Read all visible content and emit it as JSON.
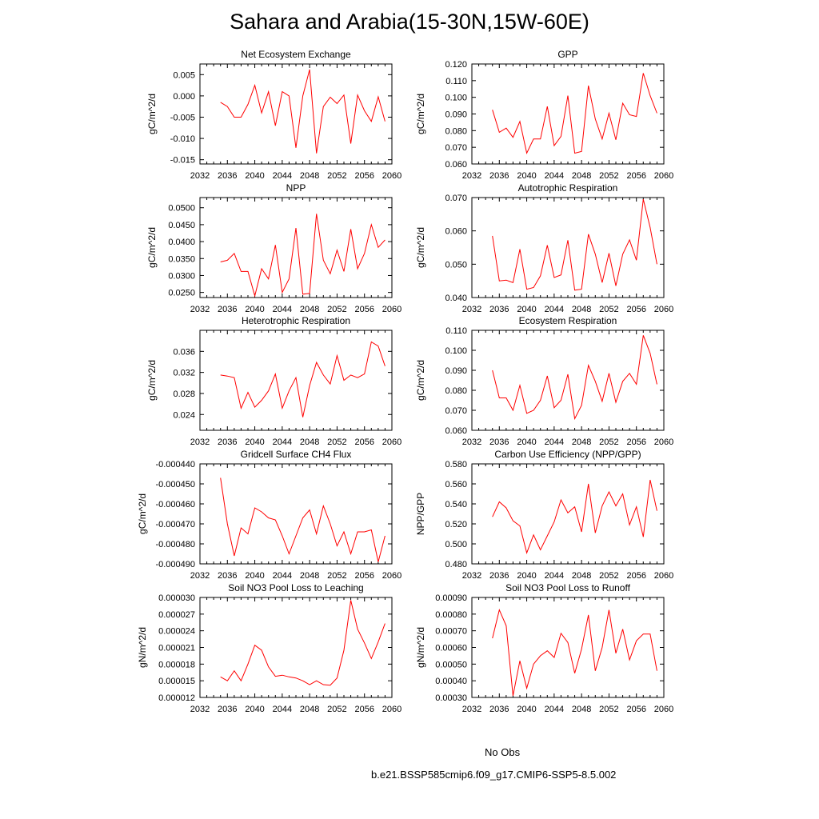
{
  "title": "Sahara and Arabia(15-30N,15W-60E)",
  "colors": {
    "model_line": "#ff0000",
    "obs_line": "#4a4aff",
    "axis": "#000000"
  },
  "legend": {
    "obs_label": "No Obs",
    "model_label": "b.e21.BSSP585cmip6.f09_g17.CMIP6-SSP5-8.5.002"
  },
  "chart_data": [
    {
      "type": "line",
      "title": "Net Ecosystem Exchange",
      "xlabel": "",
      "ylabel": "gC/m^2/d",
      "xlim": [
        2032,
        2060
      ],
      "ylim": [
        -0.016,
        0.0075
      ],
      "xticks": [
        2032,
        2036,
        2040,
        2044,
        2048,
        2052,
        2056,
        2060
      ],
      "yticks": [
        -0.015,
        -0.01,
        -0.005,
        0.0,
        0.005
      ],
      "ytick_labels": [
        "-0.015",
        "-0.010",
        "-0.005",
        "0.000",
        "0.005"
      ],
      "x": [
        2035,
        2036,
        2037,
        2038,
        2039,
        2040,
        2041,
        2042,
        2043,
        2044,
        2045,
        2046,
        2047,
        2048,
        2049,
        2050,
        2051,
        2052,
        2053,
        2054,
        2055,
        2056,
        2057,
        2058,
        2059
      ],
      "values": [
        -0.0015,
        -0.0025,
        -0.005,
        -0.005,
        -0.002,
        0.0025,
        -0.004,
        0.001,
        -0.007,
        0.001,
        0.0,
        -0.0122,
        0.0,
        0.0062,
        -0.0135,
        -0.0025,
        -0.0003,
        -0.0018,
        0.0002,
        -0.0112,
        0.0002,
        -0.0035,
        -0.006,
        -0.0002,
        -0.006
      ]
    },
    {
      "type": "line",
      "title": "GPP",
      "xlabel": "",
      "ylabel": "gC/m^2/d",
      "xlim": [
        2032,
        2060
      ],
      "ylim": [
        0.06,
        0.12
      ],
      "xticks": [
        2032,
        2036,
        2040,
        2044,
        2048,
        2052,
        2056,
        2060
      ],
      "yticks": [
        0.06,
        0.07,
        0.08,
        0.09,
        0.1,
        0.11,
        0.12
      ],
      "ytick_labels": [
        "0.060",
        "0.070",
        "0.080",
        "0.090",
        "0.100",
        "0.110",
        "0.120"
      ],
      "x": [
        2035,
        2036,
        2037,
        2038,
        2039,
        2040,
        2041,
        2042,
        2043,
        2044,
        2045,
        2046,
        2047,
        2048,
        2049,
        2050,
        2051,
        2052,
        2053,
        2054,
        2055,
        2056,
        2057,
        2058,
        2059
      ],
      "values": [
        0.0925,
        0.079,
        0.0815,
        0.076,
        0.0855,
        0.0665,
        0.075,
        0.075,
        0.0945,
        0.071,
        0.0765,
        0.101,
        0.0665,
        0.0675,
        0.107,
        0.087,
        0.075,
        0.0905,
        0.0745,
        0.0965,
        0.0895,
        0.0885,
        0.1145,
        0.101,
        0.0905
      ]
    },
    {
      "type": "line",
      "title": "NPP",
      "xlabel": "",
      "ylabel": "gC/m^2/d",
      "xlim": [
        2032,
        2060
      ],
      "ylim": [
        0.0235,
        0.053
      ],
      "xticks": [
        2032,
        2036,
        2040,
        2044,
        2048,
        2052,
        2056,
        2060
      ],
      "yticks": [
        0.025,
        0.03,
        0.035,
        0.04,
        0.045,
        0.05
      ],
      "ytick_labels": [
        "0.0250",
        "0.0300",
        "0.0350",
        "0.0400",
        "0.0450",
        "0.0500"
      ],
      "x": [
        2035,
        2036,
        2037,
        2038,
        2039,
        2040,
        2041,
        2042,
        2043,
        2044,
        2045,
        2046,
        2047,
        2048,
        2049,
        2050,
        2051,
        2052,
        2053,
        2054,
        2055,
        2056,
        2057,
        2058,
        2059
      ],
      "values": [
        0.034,
        0.0345,
        0.0365,
        0.0312,
        0.0312,
        0.024,
        0.032,
        0.029,
        0.039,
        0.025,
        0.029,
        0.044,
        0.0245,
        0.0247,
        0.0482,
        0.0345,
        0.0305,
        0.0375,
        0.0312,
        0.0437,
        0.032,
        0.0365,
        0.045,
        0.0383,
        0.0405
      ]
    },
    {
      "type": "line",
      "title": "Autotrophic Respiration",
      "xlabel": "",
      "ylabel": "gC/m^2/d",
      "xlim": [
        2032,
        2060
      ],
      "ylim": [
        0.04,
        0.07
      ],
      "xticks": [
        2032,
        2036,
        2040,
        2044,
        2048,
        2052,
        2056,
        2060
      ],
      "yticks": [
        0.04,
        0.05,
        0.06,
        0.07
      ],
      "ytick_labels": [
        "0.040",
        "0.050",
        "0.060",
        "0.070"
      ],
      "x": [
        2035,
        2036,
        2037,
        2038,
        2039,
        2040,
        2041,
        2042,
        2043,
        2044,
        2045,
        2046,
        2047,
        2048,
        2049,
        2050,
        2051,
        2052,
        2053,
        2054,
        2055,
        2056,
        2057,
        2058,
        2059
      ],
      "values": [
        0.0585,
        0.045,
        0.0452,
        0.0445,
        0.0545,
        0.0425,
        0.043,
        0.0465,
        0.0557,
        0.046,
        0.0468,
        0.0572,
        0.0422,
        0.0425,
        0.059,
        0.053,
        0.0445,
        0.0533,
        0.0435,
        0.053,
        0.0573,
        0.0512,
        0.0695,
        0.061,
        0.05
      ]
    },
    {
      "type": "line",
      "title": "Heterotrophic Respiration",
      "xlabel": "",
      "ylabel": "gC/m^2/d",
      "xlim": [
        2032,
        2060
      ],
      "ylim": [
        0.021,
        0.04
      ],
      "xticks": [
        2032,
        2036,
        2040,
        2044,
        2048,
        2052,
        2056,
        2060
      ],
      "yticks": [
        0.024,
        0.028,
        0.032,
        0.036
      ],
      "ytick_labels": [
        "0.024",
        "0.028",
        "0.032",
        "0.036"
      ],
      "x": [
        2035,
        2036,
        2037,
        2038,
        2039,
        2040,
        2041,
        2042,
        2043,
        2044,
        2045,
        2046,
        2047,
        2048,
        2049,
        2050,
        2051,
        2052,
        2053,
        2054,
        2055,
        2056,
        2057,
        2058,
        2059
      ],
      "values": [
        0.0315,
        0.0313,
        0.031,
        0.0252,
        0.0282,
        0.0254,
        0.0267,
        0.0285,
        0.0317,
        0.0252,
        0.0285,
        0.031,
        0.0235,
        0.0295,
        0.0339,
        0.0315,
        0.0298,
        0.0352,
        0.0305,
        0.0315,
        0.031,
        0.0317,
        0.0378,
        0.037,
        0.0332
      ]
    },
    {
      "type": "line",
      "title": "Ecosystem Respiration",
      "xlabel": "",
      "ylabel": "gC/m^2/d",
      "xlim": [
        2032,
        2060
      ],
      "ylim": [
        0.06,
        0.11
      ],
      "xticks": [
        2032,
        2036,
        2040,
        2044,
        2048,
        2052,
        2056,
        2060
      ],
      "yticks": [
        0.06,
        0.07,
        0.08,
        0.09,
        0.1,
        0.11
      ],
      "ytick_labels": [
        "0.060",
        "0.070",
        "0.080",
        "0.090",
        "0.100",
        "0.110"
      ],
      "x": [
        2035,
        2036,
        2037,
        2038,
        2039,
        2040,
        2041,
        2042,
        2043,
        2044,
        2045,
        2046,
        2047,
        2048,
        2049,
        2050,
        2051,
        2052,
        2053,
        2054,
        2055,
        2056,
        2057,
        2058,
        2059
      ],
      "values": [
        0.09,
        0.0762,
        0.0762,
        0.07,
        0.0825,
        0.0685,
        0.07,
        0.075,
        0.0872,
        0.0713,
        0.075,
        0.088,
        0.0658,
        0.0725,
        0.0925,
        0.0845,
        0.0745,
        0.0885,
        0.074,
        0.0845,
        0.0885,
        0.083,
        0.1075,
        0.0985,
        0.083
      ]
    },
    {
      "type": "line",
      "title": "Gridcell Surface CH4 Flux",
      "xlabel": "",
      "ylabel": "gC/m^2/d",
      "xlim": [
        2032,
        2060
      ],
      "ylim": [
        -0.00049,
        -0.00044
      ],
      "xticks": [
        2032,
        2036,
        2040,
        2044,
        2048,
        2052,
        2056,
        2060
      ],
      "yticks": [
        -0.00049,
        -0.00048,
        -0.00047,
        -0.00046,
        -0.00045,
        -0.00044
      ],
      "ytick_labels": [
        "-0.000490",
        "-0.000480",
        "-0.000470",
        "-0.000460",
        "-0.000450",
        "-0.000440"
      ],
      "x": [
        2035,
        2036,
        2037,
        2038,
        2039,
        2040,
        2041,
        2042,
        2043,
        2044,
        2045,
        2046,
        2047,
        2048,
        2049,
        2050,
        2051,
        2052,
        2053,
        2054,
        2055,
        2056,
        2057,
        2058,
        2059
      ],
      "values": [
        -0.000447,
        -0.00047,
        -0.000486,
        -0.000472,
        -0.000475,
        -0.000462,
        -0.000464,
        -0.000467,
        -0.000468,
        -0.000476,
        -0.000485,
        -0.000476,
        -0.000467,
        -0.000463,
        -0.000475,
        -0.000461,
        -0.00047,
        -0.000481,
        -0.000474,
        -0.000485,
        -0.000474,
        -0.000474,
        -0.000473,
        -0.000489,
        -0.000476
      ]
    },
    {
      "type": "line",
      "title": "Carbon Use Efficiency (NPP/GPP)",
      "xlabel": "",
      "ylabel": "NPP/GPP",
      "xlim": [
        2032,
        2060
      ],
      "ylim": [
        0.48,
        0.58
      ],
      "xticks": [
        2032,
        2036,
        2040,
        2044,
        2048,
        2052,
        2056,
        2060
      ],
      "yticks": [
        0.48,
        0.5,
        0.52,
        0.54,
        0.56,
        0.58
      ],
      "ytick_labels": [
        "0.480",
        "0.500",
        "0.520",
        "0.540",
        "0.560",
        "0.580"
      ],
      "x": [
        2035,
        2036,
        2037,
        2038,
        2039,
        2040,
        2041,
        2042,
        2043,
        2044,
        2045,
        2046,
        2047,
        2048,
        2049,
        2050,
        2051,
        2052,
        2053,
        2054,
        2055,
        2056,
        2057,
        2058,
        2059
      ],
      "values": [
        0.527,
        0.542,
        0.536,
        0.523,
        0.518,
        0.491,
        0.509,
        0.494,
        0.508,
        0.522,
        0.544,
        0.531,
        0.537,
        0.512,
        0.56,
        0.511,
        0.538,
        0.552,
        0.538,
        0.55,
        0.519,
        0.537,
        0.507,
        0.564,
        0.533
      ]
    },
    {
      "type": "line",
      "title": "Soil NO3 Pool Loss to Leaching",
      "xlabel": "",
      "ylabel": "gN/m^2/d",
      "xlim": [
        2032,
        2060
      ],
      "ylim": [
        1.2e-05,
        3e-05
      ],
      "xticks": [
        2032,
        2036,
        2040,
        2044,
        2048,
        2052,
        2056,
        2060
      ],
      "yticks": [
        1.2e-05,
        1.5e-05,
        1.8e-05,
        2.1e-05,
        2.4e-05,
        2.7e-05,
        3e-05
      ],
      "ytick_labels": [
        "0.000012",
        "0.000015",
        "0.000018",
        "0.000021",
        "0.000024",
        "0.000027",
        "0.000030"
      ],
      "x": [
        2035,
        2036,
        2037,
        2038,
        2039,
        2040,
        2041,
        2042,
        2043,
        2044,
        2045,
        2046,
        2047,
        2048,
        2049,
        2050,
        2051,
        2052,
        2053,
        2054,
        2055,
        2056,
        2057,
        2058,
        2059
      ],
      "values": [
        1.57e-05,
        1.5e-05,
        1.68e-05,
        1.5e-05,
        1.8e-05,
        2.14e-05,
        2.05e-05,
        1.75e-05,
        1.58e-05,
        1.6e-05,
        1.57e-05,
        1.55e-05,
        1.5e-05,
        1.43e-05,
        1.5e-05,
        1.43e-05,
        1.42e-05,
        1.55e-05,
        2.05e-05,
        2.95e-05,
        2.43e-05,
        2.18e-05,
        1.9e-05,
        2.2e-05,
        2.53e-05
      ]
    },
    {
      "type": "line",
      "title": "Soil NO3 Pool Loss to Runoff",
      "xlabel": "",
      "ylabel": "gN/m^2/d",
      "xlim": [
        2032,
        2060
      ],
      "ylim": [
        0.0003,
        0.0009
      ],
      "xticks": [
        2032,
        2036,
        2040,
        2044,
        2048,
        2052,
        2056,
        2060
      ],
      "yticks": [
        0.0003,
        0.0004,
        0.0005,
        0.0006,
        0.0007,
        0.0008,
        0.0009
      ],
      "ytick_labels": [
        "0.00030",
        "0.00040",
        "0.00050",
        "0.00060",
        "0.00070",
        "0.00080",
        "0.00090"
      ],
      "x": [
        2035,
        2036,
        2037,
        2038,
        2039,
        2040,
        2041,
        2042,
        2043,
        2044,
        2045,
        2046,
        2047,
        2048,
        2049,
        2050,
        2051,
        2052,
        2053,
        2054,
        2055,
        2056,
        2057,
        2058,
        2059
      ],
      "values": [
        0.000655,
        0.000825,
        0.00073,
        0.00031,
        0.00052,
        0.000355,
        0.0005,
        0.00055,
        0.00058,
        0.00054,
        0.000685,
        0.00063,
        0.000445,
        0.00059,
        0.000795,
        0.00046,
        0.0006,
        0.000825,
        0.000565,
        0.00071,
        0.000525,
        0.00064,
        0.00068,
        0.00068,
        0.00046
      ]
    }
  ]
}
